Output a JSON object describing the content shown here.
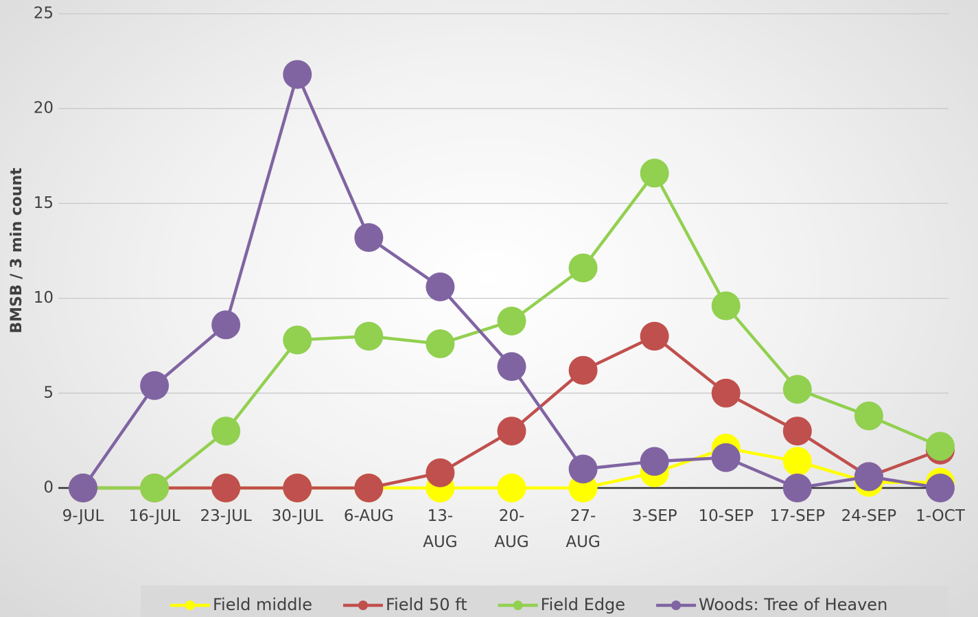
{
  "chart_data": {
    "type": "line",
    "y_label": "BMSB / 3 min count",
    "categories": [
      "9-JUL",
      "16-JUL",
      "23-JUL",
      "30-JUL",
      "6-AUG",
      "13-\nAUG",
      "20-\nAUG",
      "27-\nAUG",
      "3-SEP",
      "10-SEP",
      "17-SEP",
      "24-SEP",
      "1-OCT"
    ],
    "series": [
      {
        "name": "Field middle",
        "color": "#ffff00",
        "values": [
          0,
          0,
          0,
          0,
          0,
          0,
          0,
          0,
          0.8,
          2.1,
          1.4,
          0.3,
          0.3
        ]
      },
      {
        "name": "Field 50 ft",
        "color": "#c0504d",
        "values": [
          0,
          0,
          0,
          0,
          0,
          0.8,
          3,
          6.2,
          8,
          5,
          3,
          0.6,
          2
        ]
      },
      {
        "name": "Field Edge",
        "color": "#92d050",
        "values": [
          0,
          0,
          3,
          7.8,
          8,
          7.6,
          8.8,
          11.6,
          16.6,
          9.6,
          5.2,
          3.8,
          2.2
        ]
      },
      {
        "name": "Woods: Tree of Heaven",
        "color": "#8064a2",
        "values": [
          0,
          5.4,
          8.6,
          21.8,
          13.2,
          10.6,
          6.4,
          1,
          1.4,
          1.6,
          0,
          0.6,
          0
        ]
      }
    ],
    "ylim": [
      0,
      25
    ],
    "yticks": [
      0,
      5,
      10,
      15,
      20,
      25
    ],
    "grid": true,
    "legend": "bottom"
  }
}
